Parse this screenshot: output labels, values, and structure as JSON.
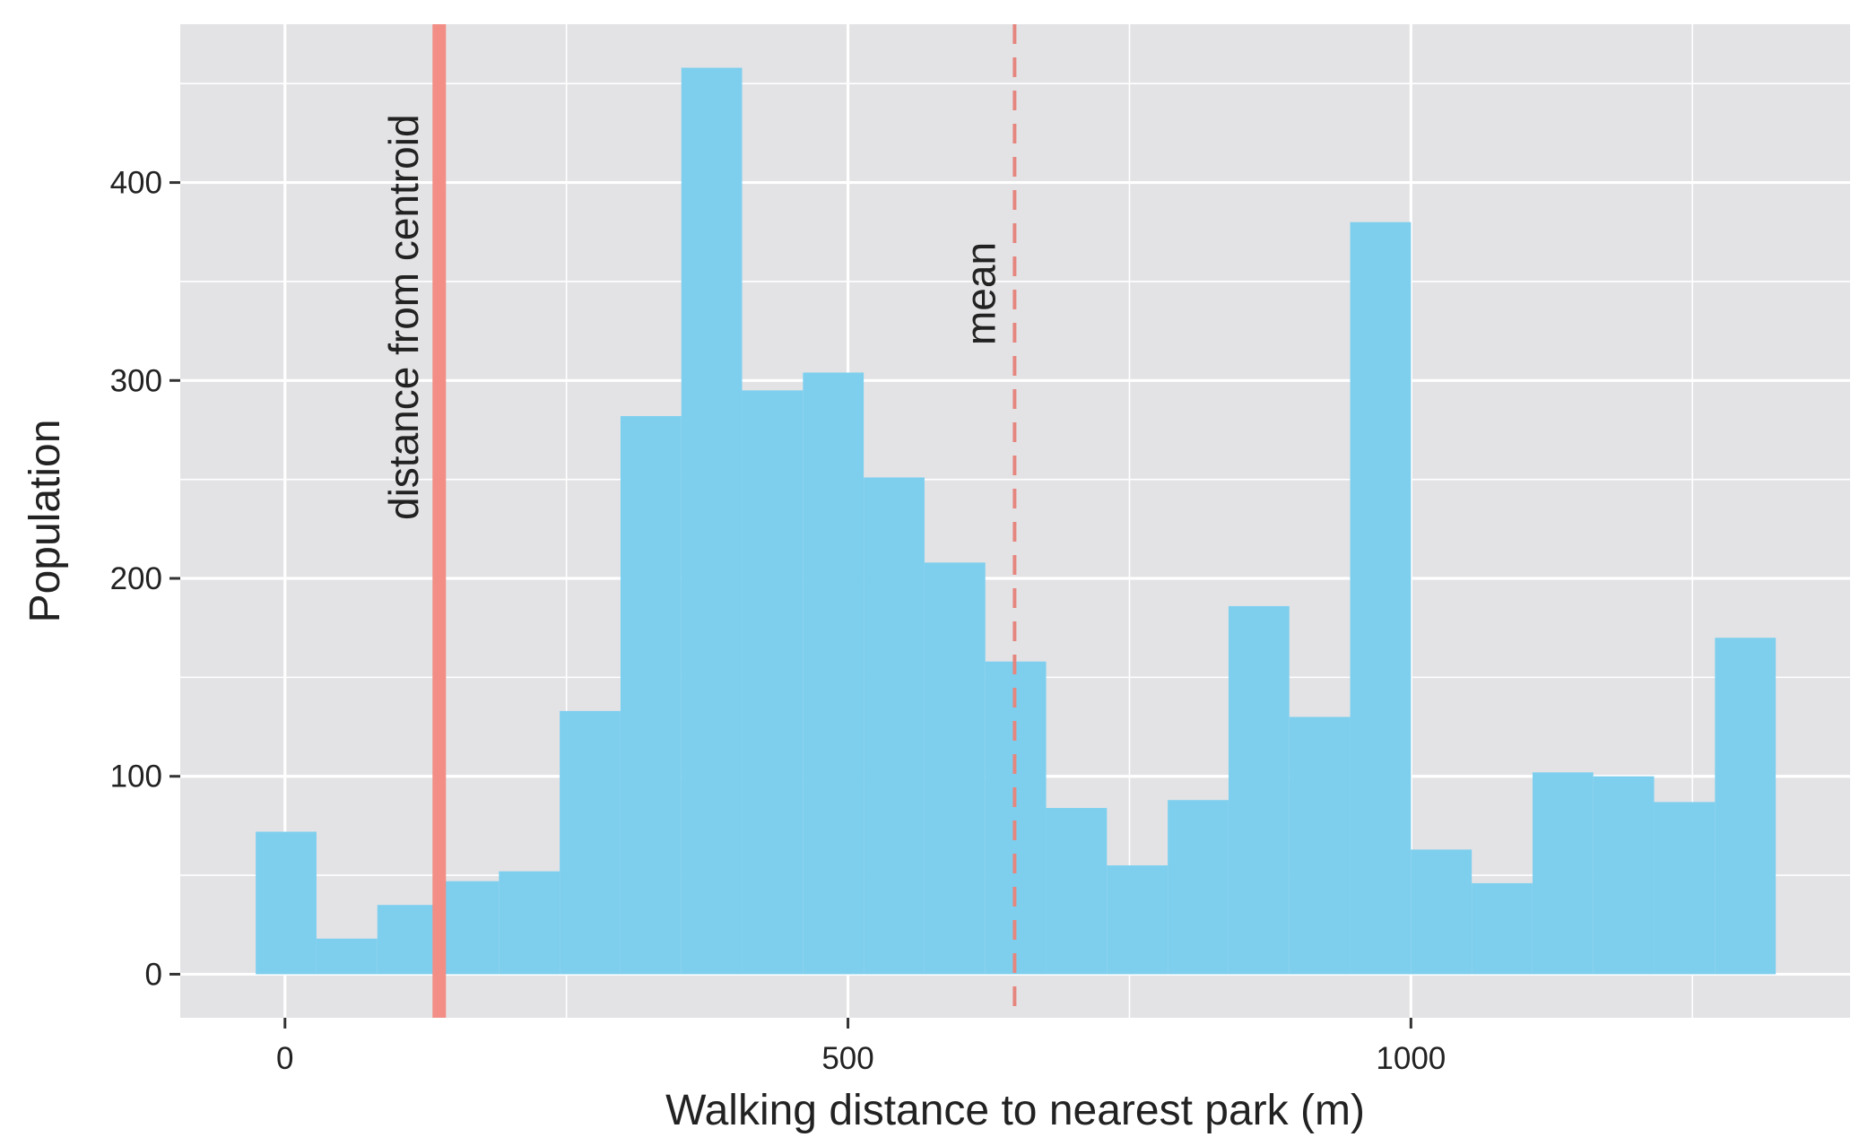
{
  "chart_data": {
    "type": "bar",
    "xlabel": "Walking distance to nearest park (m)",
    "ylabel": "Population",
    "xlim": [
      -93,
      1390
    ],
    "ylim": [
      -22,
      480
    ],
    "x_ticks": [
      {
        "value": 0,
        "label": "0"
      },
      {
        "value": 500,
        "label": "500"
      },
      {
        "value": 1000,
        "label": "1000"
      }
    ],
    "x_minor_ticks": [
      250,
      750,
      1250
    ],
    "y_ticks": [
      {
        "value": 0,
        "label": "0"
      },
      {
        "value": 100,
        "label": "100"
      },
      {
        "value": 200,
        "label": "200"
      },
      {
        "value": 300,
        "label": "300"
      },
      {
        "value": 400,
        "label": "400"
      }
    ],
    "y_minor_ticks": [
      50,
      150,
      250,
      350,
      450
    ],
    "bin_width": 54,
    "bins": [
      {
        "x0": -26,
        "value": 72
      },
      {
        "x0": 28,
        "value": 18
      },
      {
        "x0": 82,
        "value": 35
      },
      {
        "x0": 136,
        "value": 47
      },
      {
        "x0": 190,
        "value": 52
      },
      {
        "x0": 244,
        "value": 133
      },
      {
        "x0": 298,
        "value": 282
      },
      {
        "x0": 352,
        "value": 458
      },
      {
        "x0": 406,
        "value": 295
      },
      {
        "x0": 460,
        "value": 304
      },
      {
        "x0": 514,
        "value": 251
      },
      {
        "x0": 568,
        "value": 208
      },
      {
        "x0": 622,
        "value": 158
      },
      {
        "x0": 676,
        "value": 84
      },
      {
        "x0": 730,
        "value": 55
      },
      {
        "x0": 784,
        "value": 88
      },
      {
        "x0": 838,
        "value": 186
      },
      {
        "x0": 892,
        "value": 130
      },
      {
        "x0": 946,
        "value": 380
      },
      {
        "x0": 1000,
        "value": 63
      },
      {
        "x0": 1054,
        "value": 46
      },
      {
        "x0": 1108,
        "value": 102
      },
      {
        "x0": 1162,
        "value": 100
      },
      {
        "x0": 1216,
        "value": 87
      },
      {
        "x0": 1270,
        "value": 170
      }
    ],
    "reference_lines": [
      {
        "name": "distance-from-centroid-line",
        "x": 137,
        "label": "distance from centroid",
        "style": "solid",
        "color": "#f28e86"
      },
      {
        "name": "mean-line",
        "x": 648,
        "label": "mean",
        "style": "dashed",
        "color": "#e5877f"
      }
    ],
    "bar_color": "#7ecfee",
    "panel_color": "#e3e3e6",
    "grid": true,
    "legend": "none"
  }
}
